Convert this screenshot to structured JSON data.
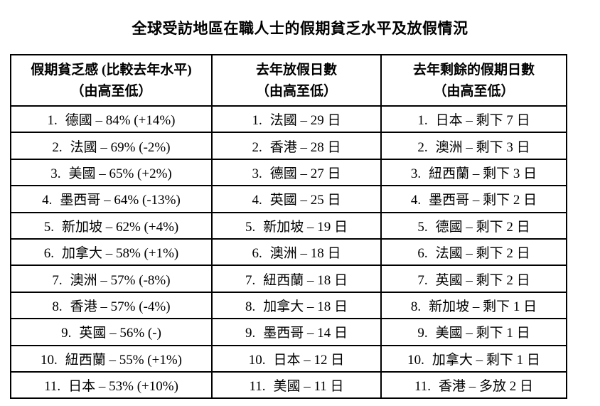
{
  "page": {
    "title": "全球受訪地區在職人士的假期貧乏水平及放假情況"
  },
  "table": {
    "ranks": [
      "1.",
      "2.",
      "3.",
      "4.",
      "5.",
      "6.",
      "7.",
      "8.",
      "9.",
      "10.",
      "11."
    ],
    "columns": [
      {
        "header_line1": "假期貧乏感 (比較去年水平)",
        "header_line2": "（由高至低）",
        "items": [
          "德國 – 84% (+14%)",
          "法國 – 69% (-2%)",
          "美國 – 65% (+2%)",
          "墨西哥 – 64% (-13%)",
          "新加坡 – 62% (+4%)",
          "加拿大 – 58% (+1%)",
          "澳洲 – 57% (-8%)",
          "香港 – 57% (-4%)",
          "英國 – 56% (-)",
          "紐西蘭 – 55% (+1%)",
          "日本 – 53% (+10%)"
        ]
      },
      {
        "header_line1": "去年放假日數",
        "header_line2": "（由高至低）",
        "items": [
          "法國 – 29 日",
          "香港 – 28 日",
          "德國 – 27 日",
          "英國 – 25 日",
          "新加坡 – 19 日",
          "澳洲 – 18 日",
          "紐西蘭 – 18 日",
          "加拿大 – 18 日",
          "墨西哥 – 14 日",
          "日本 – 12 日",
          "美國 – 11 日"
        ]
      },
      {
        "header_line1": "去年剩餘的假期日數",
        "header_line2": "（由高至低）",
        "items": [
          "日本 – 剩下 7 日",
          "澳洲 – 剩下 3 日",
          "紐西蘭 – 剩下 3 日",
          "墨西哥 – 剩下 2 日",
          "德國 – 剩下 2 日",
          "法國 – 剩下 2 日",
          "英國 – 剩下 2 日",
          "新加坡 – 剩下 1 日",
          "美國 – 剩下 1 日",
          "加拿大 – 剩下 1 日",
          "香港 – 多放 2 日"
        ]
      }
    ]
  }
}
